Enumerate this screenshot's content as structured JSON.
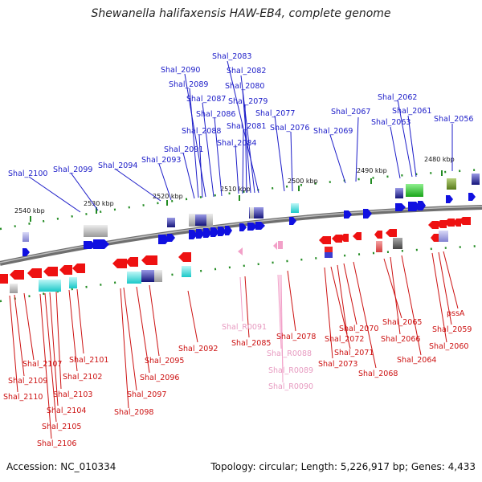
{
  "title": "Shewanella halifaxensis HAW-EB4, complete genome",
  "footer": {
    "accession": "Accession: NC_010334",
    "topology": "Topology: circular; Length: 5,226,917 bp; Genes: 4,433"
  },
  "colors": {
    "forward_gene": "#1010e0",
    "reverse_gene": "#ee1111",
    "rna": "#f2a0c8",
    "backbone": "#777777",
    "tick": "#228b22"
  },
  "scale_ticks": [
    "2540 kbp",
    "2530 kbp",
    "2520 kbp",
    "2510 kbp",
    "2500 kbp",
    "2490 kbp",
    "2480 kbp"
  ],
  "labels_top": [
    "Shal_2083",
    "Shal_2082",
    "Shal_2090",
    "Shal_2080",
    "Shal_2089",
    "Shal_2087",
    "Shal_2079",
    "Shal_2086",
    "Shal_2077",
    "Shal_2081",
    "Shal_2076",
    "Shal_2088",
    "Shal_2084",
    "Shal_2091",
    "Shal_2093",
    "Shal_2094",
    "Shal_2099",
    "Shal_2100",
    "Shal_2067",
    "Shal_2069",
    "Shal_2062",
    "Shal_2063",
    "Shal_2061",
    "Shal_2056"
  ],
  "labels_bottom": [
    "Shal_2107",
    "Shal_2101",
    "Shal_2109",
    "Shal_2102",
    "Shal_2110",
    "Shal_2103",
    "Shal_2104",
    "Shal_2105",
    "Shal_2106",
    "Shal_2092",
    "Shal_2095",
    "Shal_2096",
    "Shal_2097",
    "Shal_2098",
    "Shal_2085",
    "Shal_2078",
    "Shal_2070",
    "Shal_2072",
    "Shal_2071",
    "Shal_2073",
    "Shal_2068",
    "Shal_2065",
    "Shal_2066",
    "Shal_2064",
    "pssA",
    "Shal_2059",
    "Shal_2060"
  ],
  "labels_rna": [
    "Shal_R0091",
    "Shal_R0088",
    "Shal_R0089",
    "Shal_R0090"
  ]
}
